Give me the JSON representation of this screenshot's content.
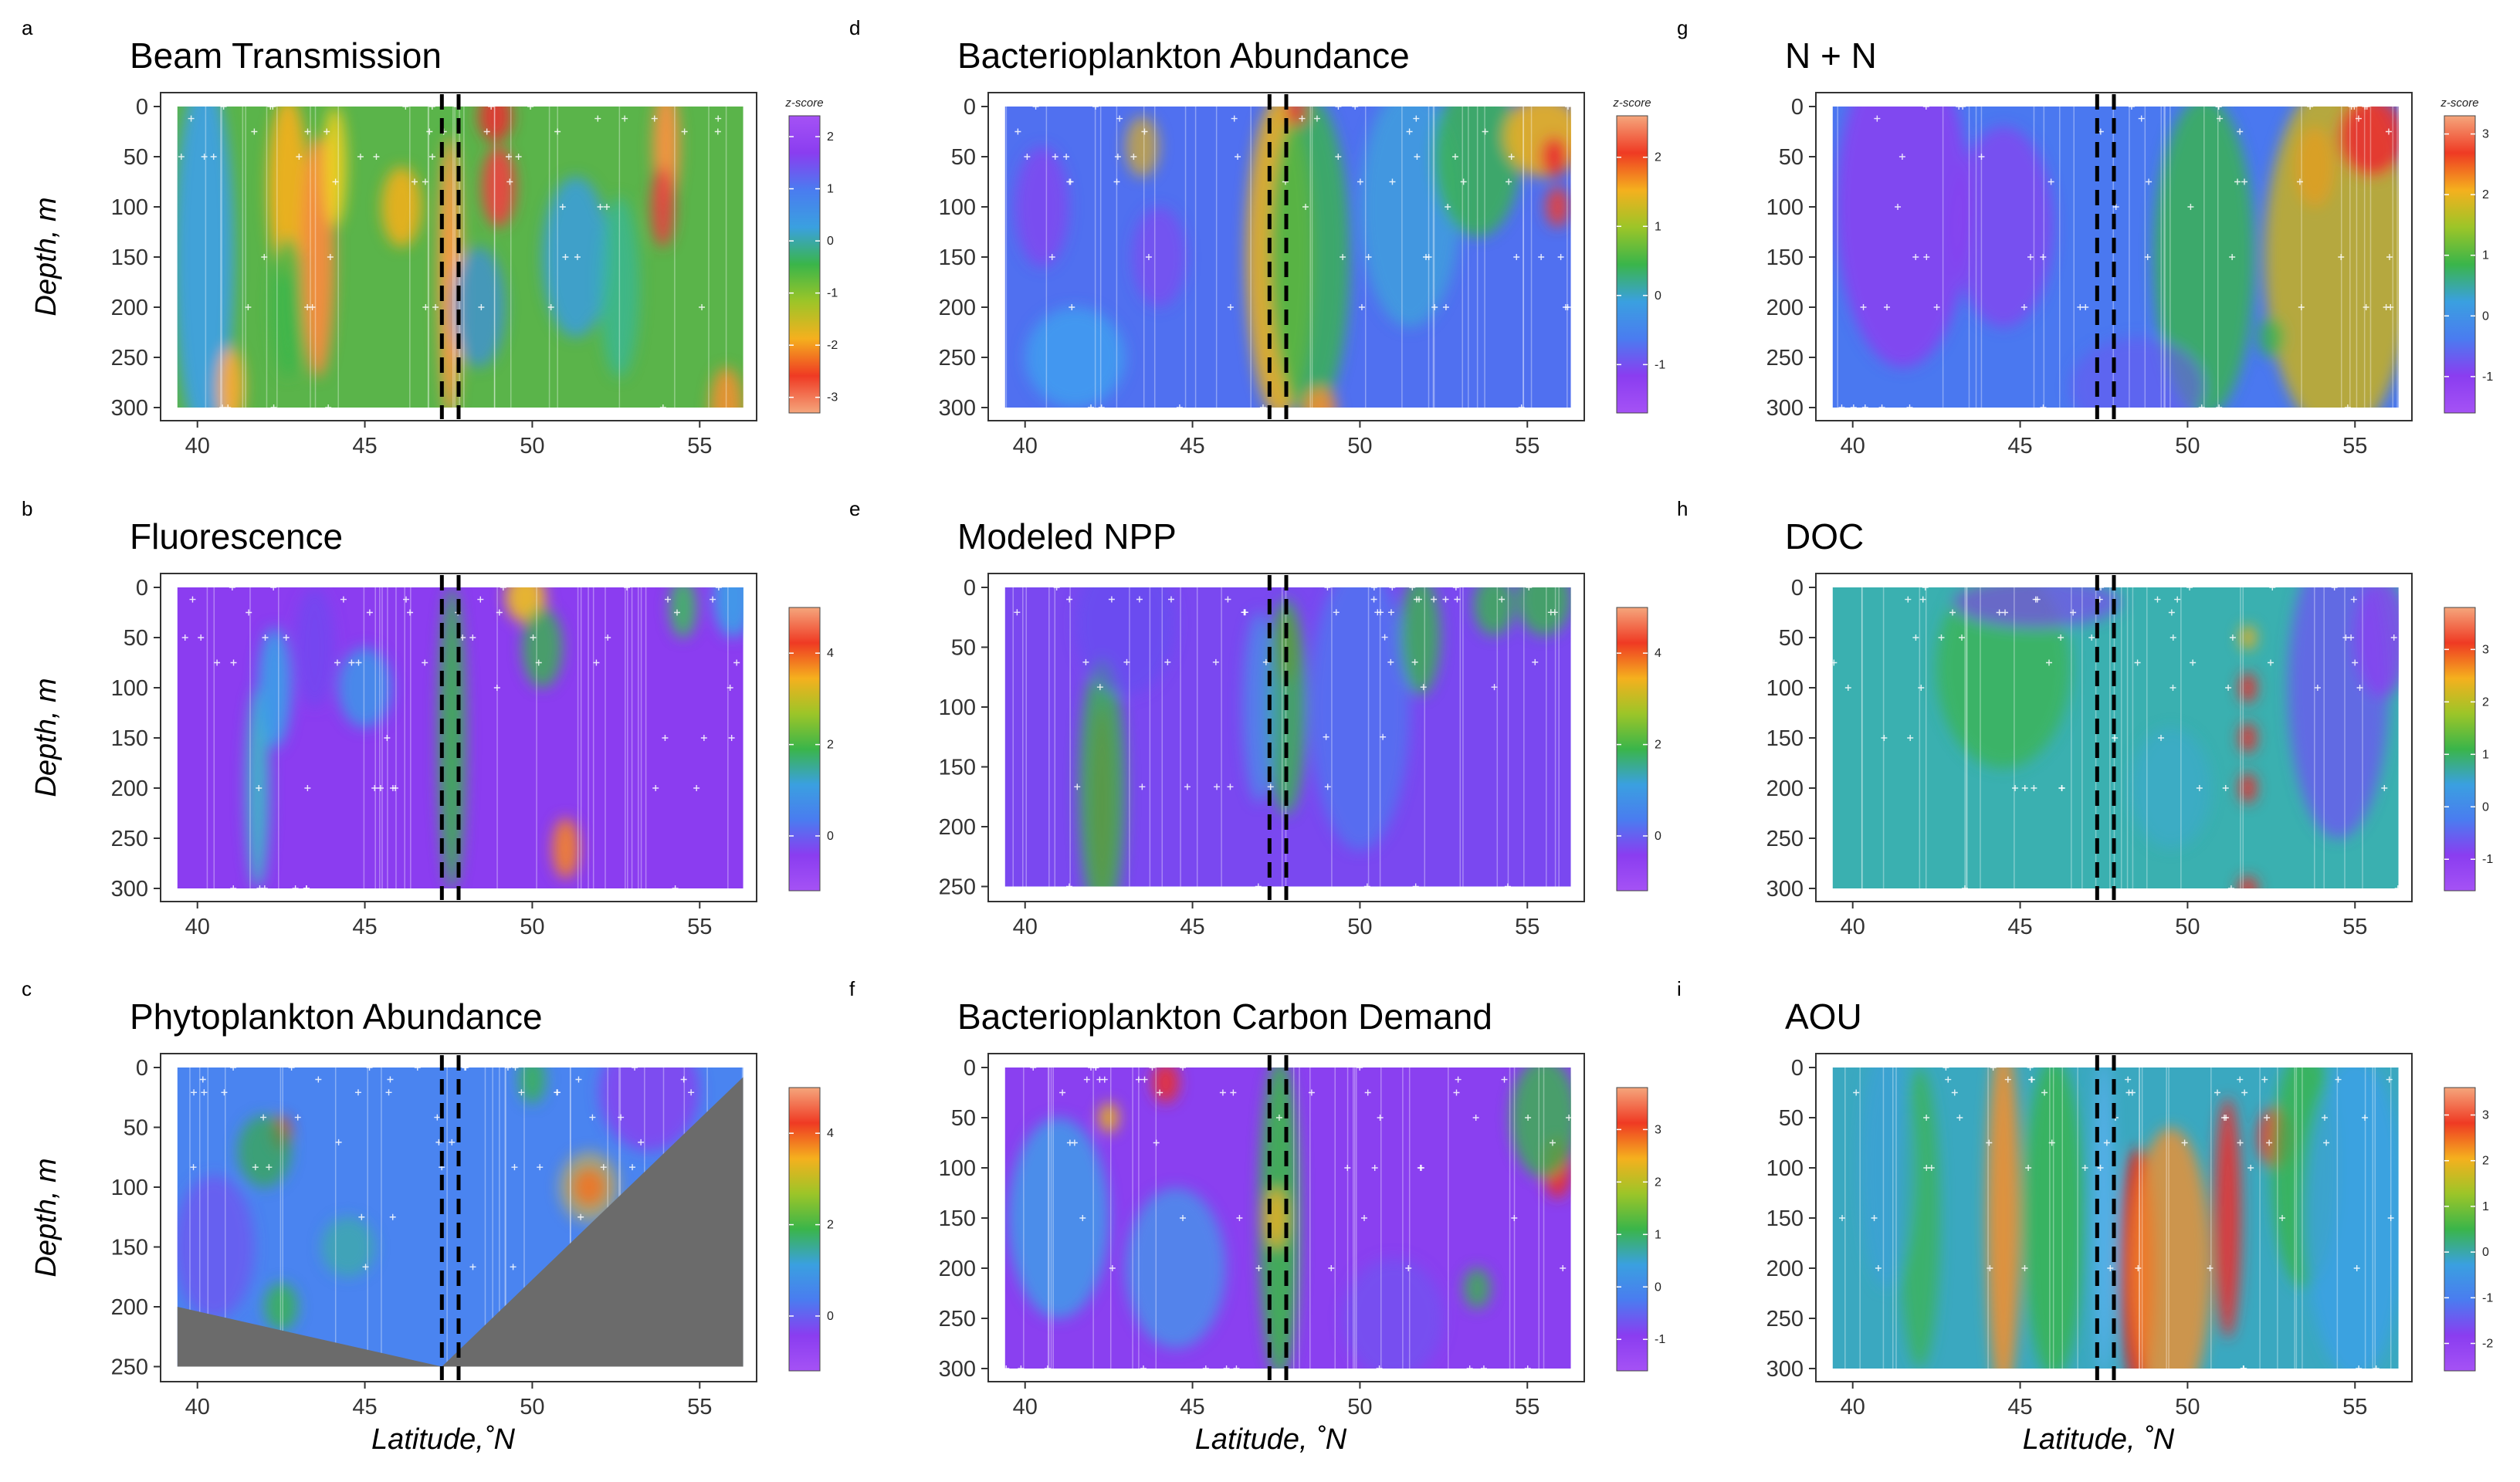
{
  "chart_data": [
    {
      "id": "a",
      "type": "heatmap",
      "title": "Beam Transmission",
      "ylabel": "Depth, m",
      "xlabel": "",
      "xlim": [
        38.9,
        56.7
      ],
      "xticks": [
        40,
        45,
        50,
        55
      ],
      "ylim": [
        0,
        310
      ],
      "yticks": [
        0,
        50,
        100,
        150,
        200,
        250,
        300
      ],
      "data_x": [
        39.4,
        56.3
      ],
      "data_y": [
        0,
        300
      ],
      "legend": {
        "title": "z-score",
        "ticks": [
          2,
          1,
          0,
          -1,
          -2,
          -3
        ],
        "range": [
          -3.3,
          2.4
        ],
        "palette": "reversed"
      },
      "dashed_lines": [
        47.3,
        47.8
      ],
      "bg": "#5ab44a",
      "blobs": [
        [
          40.2,
          150,
          0.9,
          180,
          "#3fa0e8",
          0.9
        ],
        [
          42.7,
          80,
          0.6,
          90,
          "#f0b020",
          0.95
        ],
        [
          42.7,
          200,
          0.5,
          70,
          "#3cb54a",
          0.8
        ],
        [
          43.6,
          150,
          0.5,
          120,
          "#ff8a3d",
          0.9
        ],
        [
          44.1,
          60,
          0.35,
          60,
          "#f5d020",
          0.9
        ],
        [
          46.1,
          100,
          0.6,
          40,
          "#e8b020",
          0.95
        ],
        [
          47.55,
          170,
          0.35,
          140,
          "#ff9a40",
          0.95
        ],
        [
          48.9,
          10,
          0.5,
          25,
          "#e83030",
          0.9
        ],
        [
          49.0,
          80,
          0.5,
          40,
          "#f04040",
          0.9
        ],
        [
          48.4,
          200,
          0.8,
          60,
          "#3a8be8",
          0.7
        ],
        [
          51.3,
          150,
          1.0,
          80,
          "#3a9be8",
          0.8
        ],
        [
          52.6,
          180,
          0.6,
          90,
          "#34b8a0",
          0.7
        ],
        [
          54.0,
          40,
          0.4,
          60,
          "#ff9040",
          0.9
        ],
        [
          53.9,
          100,
          0.35,
          40,
          "#e84040",
          0.9
        ],
        [
          55.8,
          300,
          0.5,
          40,
          "#f09030",
          0.9
        ],
        [
          41.0,
          280,
          0.4,
          40,
          "#ffaa30",
          0.9
        ]
      ]
    },
    {
      "id": "b",
      "type": "heatmap",
      "title": "Fluorescence",
      "ylabel": "Depth, m",
      "xlabel": "",
      "xlim": [
        38.9,
        56.7
      ],
      "xticks": [
        40,
        45,
        50,
        55
      ],
      "ylim": [
        0,
        310
      ],
      "yticks": [
        0,
        50,
        100,
        150,
        200,
        250,
        300
      ],
      "data_x": [
        39.4,
        56.3
      ],
      "data_y": [
        0,
        300
      ],
      "legend": {
        "title": "",
        "ticks": [
          4,
          2,
          0
        ],
        "range": [
          -1.2,
          5.0
        ],
        "palette": "normal"
      },
      "dashed_lines": [
        47.3,
        47.8
      ],
      "bg": "#8b3df0",
      "blobs": [
        [
          41.8,
          200,
          0.35,
          100,
          "#3fb8c8",
          0.9
        ],
        [
          42.3,
          100,
          0.5,
          60,
          "#3ca0e8",
          0.9
        ],
        [
          45.0,
          100,
          0.8,
          40,
          "#3a9be8",
          0.8
        ],
        [
          47.6,
          150,
          0.4,
          150,
          "#3cb050",
          0.9
        ],
        [
          49.8,
          10,
          0.6,
          25,
          "#f0c020",
          0.9
        ],
        [
          50.3,
          60,
          0.6,
          40,
          "#3ab54a",
          0.8
        ],
        [
          51.0,
          260,
          0.4,
          30,
          "#f08030",
          0.95
        ],
        [
          54.5,
          20,
          0.4,
          30,
          "#40b860",
          0.9
        ],
        [
          56.0,
          10,
          0.6,
          40,
          "#3aa0e8",
          0.9
        ],
        [
          43.5,
          60,
          0.6,
          60,
          "#6050f0",
          0.5
        ]
      ]
    },
    {
      "id": "c",
      "type": "heatmap",
      "title": "Phytoplankton Abundance",
      "ylabel": "Depth, m",
      "xlabel": "Latitude,˚N",
      "xlim": [
        38.9,
        56.7
      ],
      "xticks": [
        40,
        45,
        50,
        55
      ],
      "ylim": [
        0,
        260
      ],
      "yticks": [
        0,
        50,
        100,
        150,
        200,
        250
      ],
      "data_x": [
        39.4,
        56.3
      ],
      "data_y": [
        0,
        250
      ],
      "legend": {
        "title": "",
        "ticks": [
          4,
          2,
          0
        ],
        "range": [
          -1.2,
          5.0
        ],
        "palette": "normal"
      },
      "dashed_lines": [
        47.3,
        47.8
      ],
      "bg": "#4a84f0",
      "blobs": [
        [
          42.5,
          55,
          0.3,
          14,
          "#e82020",
          0.95
        ],
        [
          51.7,
          100,
          0.5,
          16,
          "#e83030",
          0.95
        ],
        [
          51.7,
          100,
          0.9,
          30,
          "#f0c020",
          0.5
        ],
        [
          42.0,
          70,
          0.8,
          30,
          "#3aa858",
          0.8
        ],
        [
          50.0,
          10,
          0.4,
          20,
          "#3ab54a",
          0.8
        ],
        [
          44.5,
          150,
          0.8,
          25,
          "#3ab0a0",
          0.7
        ],
        [
          42.5,
          200,
          0.5,
          20,
          "#3ab54a",
          0.8
        ],
        [
          53.5,
          20,
          1.5,
          50,
          "#8a40f0",
          0.8
        ],
        [
          40.5,
          150,
          1.2,
          60,
          "#7a4af0",
          0.6
        ]
      ],
      "mask": [
        [
          39.4,
          200
        ],
        [
          47.3,
          250
        ],
        [
          56.3,
          8
        ]
      ]
    },
    {
      "id": "d",
      "type": "heatmap",
      "title": "Bacterioplankton Abundance",
      "ylabel": "",
      "xlabel": "",
      "xlim": [
        38.9,
        56.7
      ],
      "xticks": [
        40,
        45,
        50,
        55
      ],
      "ylim": [
        0,
        310
      ],
      "yticks": [
        0,
        50,
        100,
        150,
        200,
        250,
        300
      ],
      "data_x": [
        39.4,
        56.3
      ],
      "data_y": [
        0,
        300
      ],
      "legend": {
        "title": "z-score",
        "ticks": [
          2,
          1,
          0,
          -1
        ],
        "range": [
          -1.7,
          2.6
        ],
        "palette": "normal"
      },
      "dashed_lines": [
        47.3,
        47.8
      ],
      "bg": "#5070f0",
      "blobs": [
        [
          47.6,
          150,
          1.0,
          160,
          "#e8b020",
          0.9
        ],
        [
          48.5,
          150,
          1.2,
          160,
          "#3ab54a",
          0.8
        ],
        [
          51.5,
          100,
          1.5,
          120,
          "#3ca8d8",
          0.7
        ],
        [
          53.5,
          50,
          1.3,
          80,
          "#3ab54a",
          0.8
        ],
        [
          55.5,
          30,
          1.2,
          40,
          "#e8b020",
          0.9
        ],
        [
          55.8,
          50,
          0.4,
          20,
          "#e83030",
          0.95
        ],
        [
          55.9,
          100,
          0.35,
          20,
          "#e04040",
          0.95
        ],
        [
          48.1,
          5,
          0.3,
          15,
          "#e83030",
          0.9
        ],
        [
          48.8,
          300,
          0.5,
          20,
          "#f09030",
          0.9
        ],
        [
          40.5,
          100,
          0.8,
          60,
          "#8a40f0",
          0.7
        ],
        [
          44.0,
          150,
          0.8,
          50,
          "#8a40f0",
          0.6
        ],
        [
          41.5,
          250,
          1.5,
          50,
          "#3ca8f0",
          0.7
        ],
        [
          43.5,
          40,
          0.5,
          30,
          "#e0b020",
          0.7
        ]
      ]
    },
    {
      "id": "e",
      "type": "heatmap",
      "title": "Modeled NPP",
      "ylabel": "",
      "xlabel": "",
      "xlim": [
        38.9,
        56.7
      ],
      "xticks": [
        40,
        45,
        50,
        55
      ],
      "ylim": [
        0,
        260
      ],
      "yticks": [
        0,
        50,
        100,
        150,
        200,
        250
      ],
      "data_x": [
        39.4,
        56.3
      ],
      "data_y": [
        0,
        250
      ],
      "legend": {
        "title": "",
        "ticks": [
          4,
          2,
          0
        ],
        "range": [
          -1.2,
          5.0
        ],
        "palette": "normal"
      },
      "dashed_lines": [
        47.3,
        47.8
      ],
      "bg": "#7a48f0",
      "blobs": [
        [
          42.3,
          180,
          0.3,
          80,
          "#e82020",
          0.95
        ],
        [
          42.3,
          170,
          0.7,
          110,
          "#3ab54a",
          0.8
        ],
        [
          47.8,
          50,
          0.3,
          30,
          "#e82020",
          0.95
        ],
        [
          47.8,
          100,
          0.6,
          90,
          "#3ab54a",
          0.8
        ],
        [
          50.0,
          100,
          1.5,
          120,
          "#4a7cf0",
          0.7
        ],
        [
          51.8,
          40,
          0.6,
          50,
          "#3ab54a",
          0.8
        ],
        [
          54.0,
          15,
          0.6,
          25,
          "#3ab54a",
          0.8
        ],
        [
          55.5,
          10,
          0.8,
          30,
          "#3ab54a",
          0.8
        ],
        [
          47.0,
          100,
          0.5,
          80,
          "#3aa0e8",
          0.6
        ],
        [
          43.0,
          30,
          1.5,
          60,
          "#6050f0",
          0.6
        ]
      ]
    },
    {
      "id": "f",
      "type": "heatmap",
      "title": "Bacterioplankton Carbon Demand",
      "ylabel": "",
      "xlabel": "Latitude, ˚N",
      "xlim": [
        38.9,
        56.7
      ],
      "xticks": [
        40,
        45,
        50,
        55
      ],
      "ylim": [
        0,
        310
      ],
      "yticks": [
        0,
        50,
        100,
        150,
        200,
        250,
        300
      ],
      "data_x": [
        39.4,
        56.3
      ],
      "data_y": [
        0,
        300
      ],
      "legend": {
        "title": "",
        "ticks": [
          3,
          2,
          1,
          0,
          -1
        ],
        "range": [
          -1.6,
          3.8
        ],
        "palette": "normal"
      },
      "dashed_lines": [
        47.3,
        47.8
      ],
      "bg": "#8a40f0",
      "blobs": [
        [
          47.6,
          150,
          0.6,
          160,
          "#3ab54a",
          0.9
        ],
        [
          47.5,
          150,
          0.3,
          30,
          "#e8b020",
          0.9
        ],
        [
          44.2,
          15,
          0.4,
          20,
          "#e83030",
          0.9
        ],
        [
          42.5,
          50,
          0.3,
          15,
          "#e8b020",
          0.9
        ],
        [
          55.9,
          100,
          0.4,
          30,
          "#e83030",
          0.95
        ],
        [
          55.5,
          50,
          1.0,
          60,
          "#3ab54a",
          0.8
        ],
        [
          41.0,
          150,
          1.5,
          100,
          "#3ca0e8",
          0.8
        ],
        [
          44.5,
          200,
          1.5,
          80,
          "#3ca0e8",
          0.7
        ],
        [
          53.5,
          220,
          0.4,
          20,
          "#3ab54a",
          0.8
        ],
        [
          51.0,
          250,
          1.5,
          60,
          "#6a58f0",
          0.6
        ]
      ]
    },
    {
      "id": "g",
      "type": "heatmap",
      "title": "N + N",
      "ylabel": "",
      "xlabel": "",
      "xlim": [
        38.9,
        56.7
      ],
      "xticks": [
        40,
        45,
        50,
        55
      ],
      "ylim": [
        0,
        310
      ],
      "yticks": [
        0,
        50,
        100,
        150,
        200,
        250,
        300
      ],
      "data_x": [
        39.4,
        56.3
      ],
      "data_y": [
        0,
        300
      ],
      "legend": {
        "title": "z-score",
        "ticks": [
          3,
          2,
          1,
          0,
          -1
        ],
        "range": [
          -1.6,
          3.3
        ],
        "palette": "normal"
      },
      "dashed_lines": [
        47.3,
        47.8
      ],
      "bg": "#4a78f0",
      "blobs": [
        [
          54.5,
          150,
          2.2,
          180,
          "#c8b020",
          0.85
        ],
        [
          55.5,
          30,
          1.0,
          40,
          "#e83030",
          0.9
        ],
        [
          53.8,
          60,
          0.6,
          40,
          "#e0a020",
          0.85
        ],
        [
          50.5,
          150,
          1.5,
          160,
          "#3ab54a",
          0.8
        ],
        [
          41.5,
          100,
          2.0,
          160,
          "#8a40f0",
          0.85
        ],
        [
          44.5,
          120,
          1.5,
          100,
          "#8a40f0",
          0.7
        ],
        [
          48.5,
          280,
          2.0,
          50,
          "#6a58f0",
          0.6
        ],
        [
          52.5,
          230,
          0.4,
          20,
          "#3ab54a",
          0.8
        ]
      ]
    },
    {
      "id": "h",
      "type": "heatmap",
      "title": "DOC",
      "ylabel": "",
      "xlabel": "",
      "xlim": [
        38.9,
        56.7
      ],
      "xticks": [
        40,
        45,
        50,
        55
      ],
      "ylim": [
        0,
        310
      ],
      "yticks": [
        0,
        50,
        100,
        150,
        200,
        250,
        300
      ],
      "data_x": [
        39.4,
        56.3
      ],
      "data_y": [
        0,
        300
      ],
      "legend": {
        "title": "",
        "ticks": [
          3,
          2,
          1,
          0,
          -1
        ],
        "range": [
          -1.6,
          3.8
        ],
        "palette": "normal"
      },
      "dashed_lines": [
        47.3,
        47.8
      ],
      "bg": "#3ab0b0",
      "blobs": [
        [
          51.8,
          100,
          0.25,
          15,
          "#e83030",
          0.95
        ],
        [
          51.8,
          150,
          0.25,
          15,
          "#e83030",
          0.95
        ],
        [
          51.8,
          200,
          0.25,
          15,
          "#e83030",
          0.95
        ],
        [
          51.8,
          50,
          0.25,
          12,
          "#e8b020",
          0.9
        ],
        [
          51.8,
          300,
          0.3,
          12,
          "#e83030",
          0.9
        ],
        [
          44.5,
          80,
          2.0,
          100,
          "#3ab54a",
          0.7
        ],
        [
          54.5,
          100,
          1.5,
          150,
          "#6a58f0",
          0.8
        ],
        [
          55.8,
          50,
          0.8,
          60,
          "#8a40f0",
          0.8
        ],
        [
          45.5,
          15,
          2.5,
          25,
          "#7a48f0",
          0.7
        ],
        [
          49.5,
          200,
          1.2,
          60,
          "#3ca8d8",
          0.5
        ]
      ]
    },
    {
      "id": "i",
      "type": "heatmap",
      "title": "AOU",
      "ylabel": "",
      "xlabel": "Latitude, ˚N",
      "xlim": [
        38.9,
        56.7
      ],
      "xticks": [
        40,
        45,
        50,
        55
      ],
      "ylim": [
        0,
        310
      ],
      "yticks": [
        0,
        50,
        100,
        150,
        200,
        250,
        300
      ],
      "data_x": [
        39.4,
        56.3
      ],
      "data_y": [
        0,
        300
      ],
      "legend": {
        "title": "",
        "ticks": [
          3,
          2,
          1,
          0,
          -1,
          -2
        ],
        "range": [
          -2.6,
          3.6
        ],
        "palette": "normal"
      },
      "dashed_lines": [
        47.3,
        47.8
      ],
      "bg": "#3aa8c0",
      "blobs": [
        [
          44.5,
          150,
          0.5,
          180,
          "#f09030",
          0.9
        ],
        [
          42.0,
          150,
          0.6,
          150,
          "#3ab54a",
          0.7
        ],
        [
          41.0,
          100,
          0.8,
          120,
          "#3aa0d8",
          0.7
        ],
        [
          46.0,
          150,
          0.9,
          160,
          "#3ab54a",
          0.8
        ],
        [
          48.5,
          200,
          0.5,
          120,
          "#e82020",
          0.95
        ],
        [
          49.5,
          200,
          1.2,
          140,
          "#f09030",
          0.8
        ],
        [
          51.2,
          150,
          0.4,
          120,
          "#e83030",
          0.9
        ],
        [
          52.6,
          70,
          0.5,
          30,
          "#e83030",
          0.9
        ],
        [
          53.5,
          100,
          1.0,
          120,
          "#3ab54a",
          0.8
        ],
        [
          55.0,
          150,
          1.5,
          160,
          "#3ca0e8",
          0.8
        ],
        [
          47.5,
          150,
          0.3,
          160,
          "#5ab0f0",
          0.9
        ]
      ]
    }
  ]
}
